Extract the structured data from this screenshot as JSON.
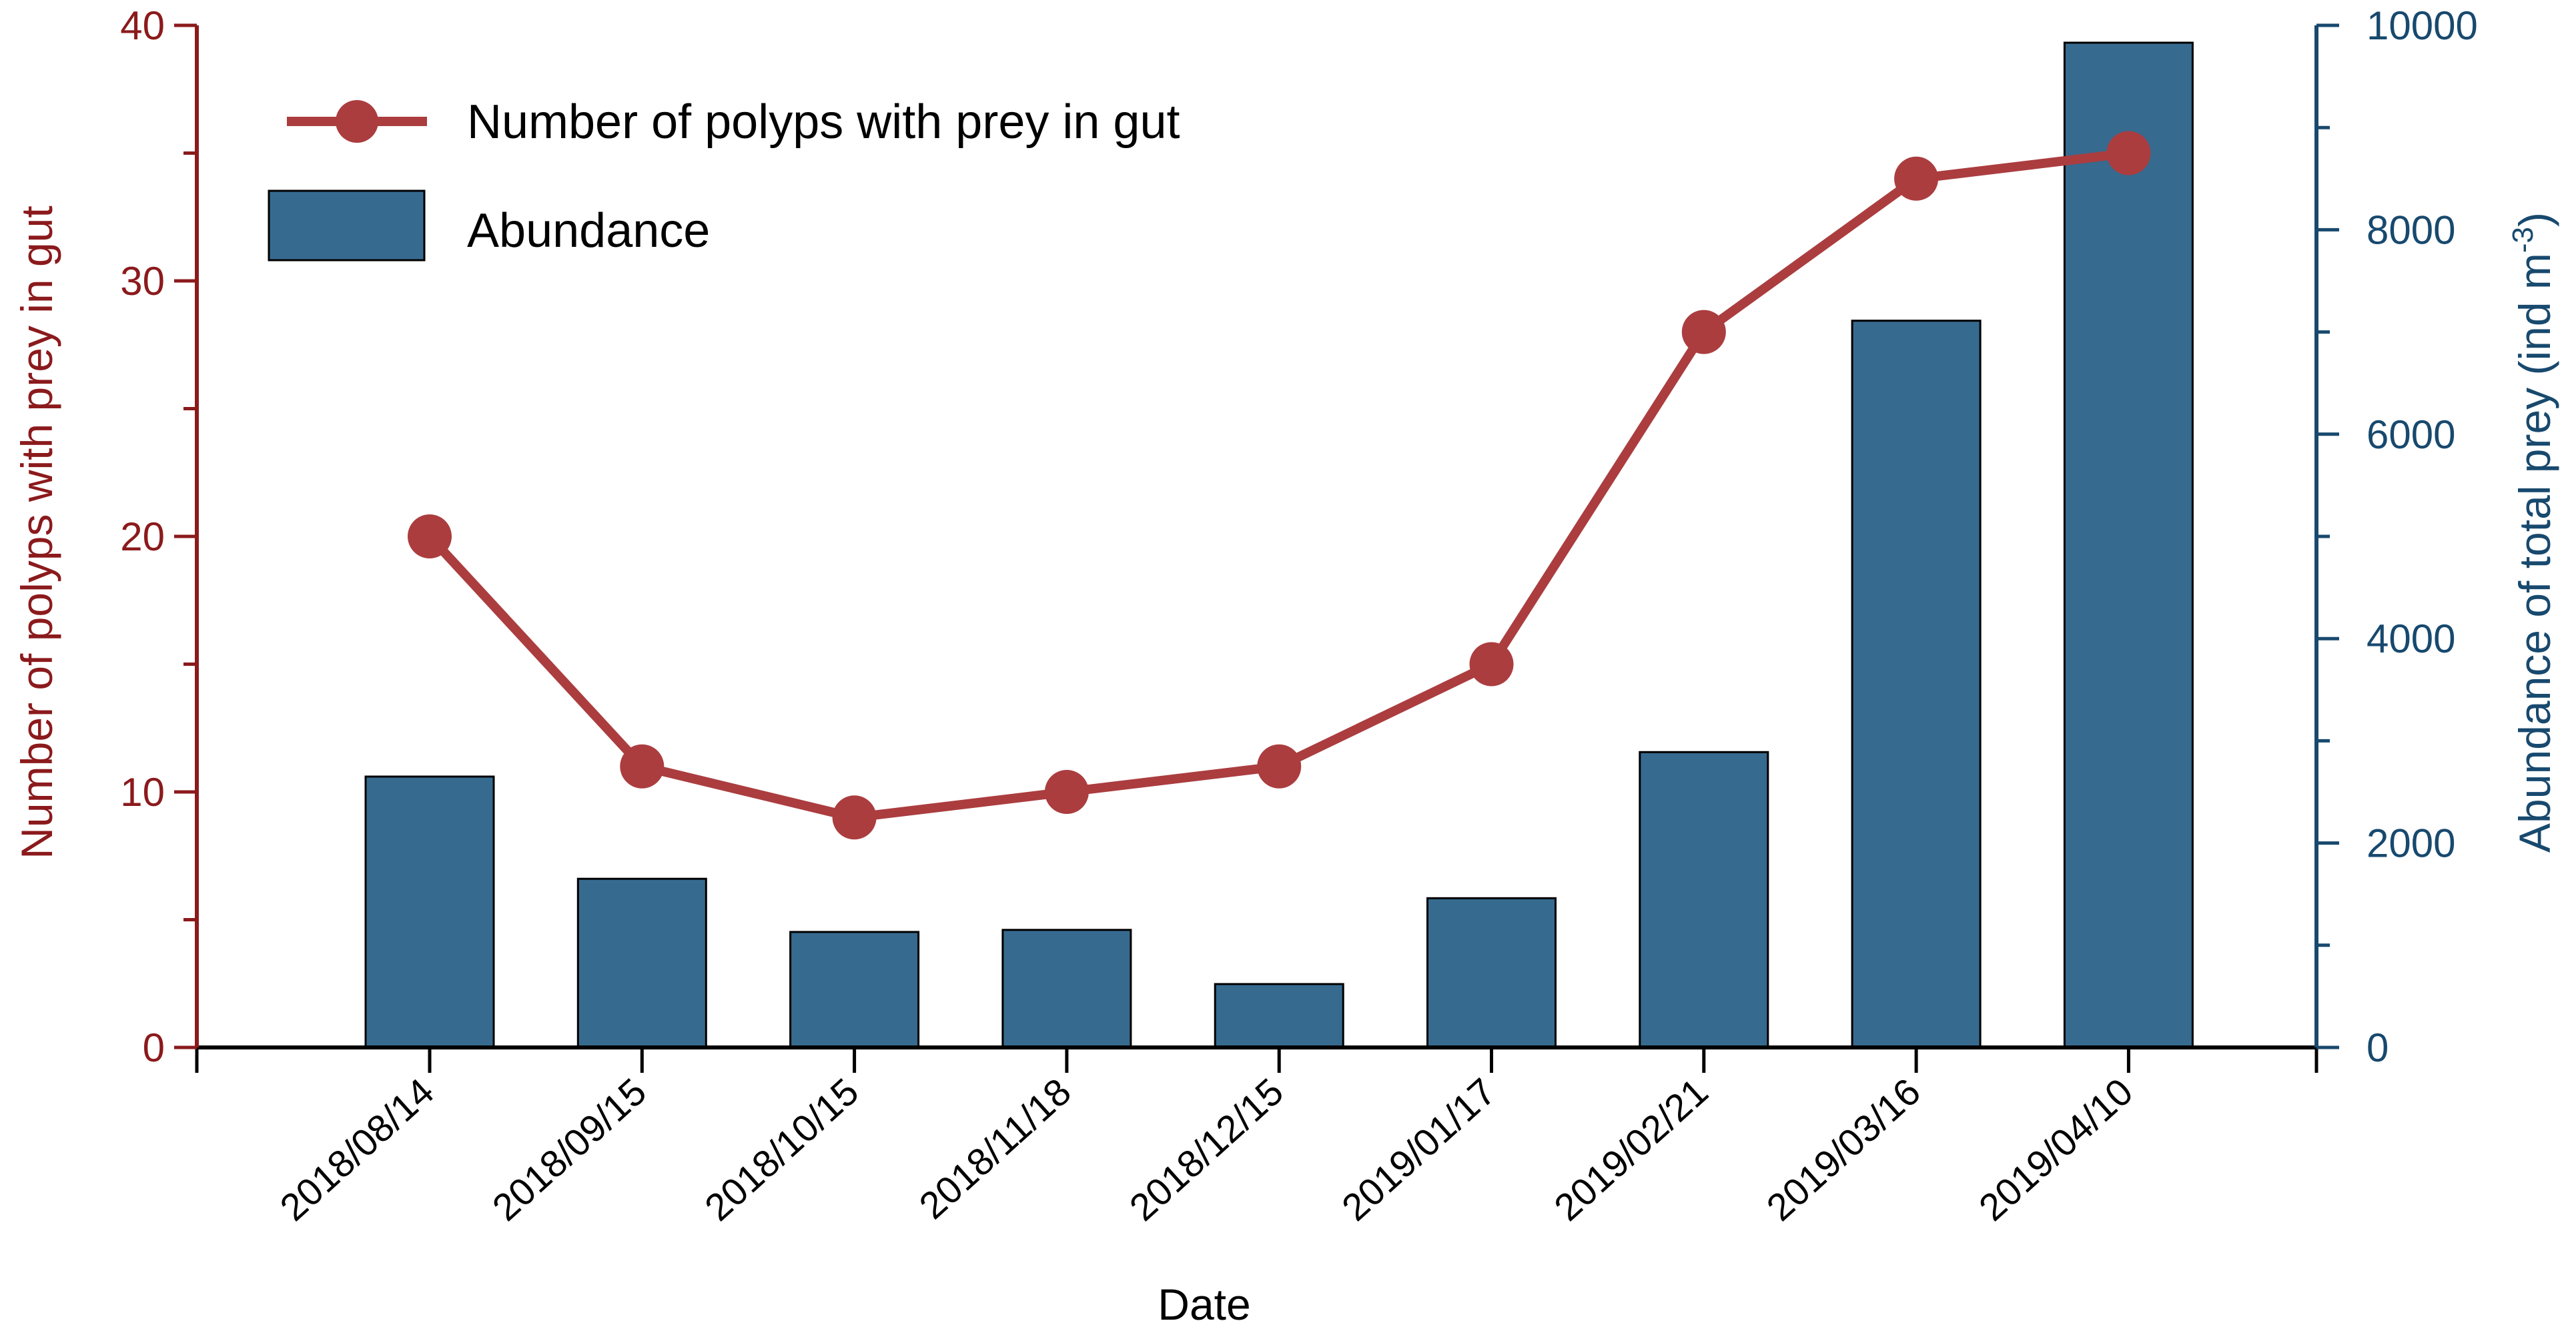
{
  "chart_data": {
    "type": "bar",
    "categories": [
      "2018/08/14",
      "2018/09/15",
      "2018/10/15",
      "2018/11/18",
      "2018/12/15",
      "2019/01/17",
      "2019/02/21",
      "2019/03/16",
      "2019/04/10"
    ],
    "series": [
      {
        "name": "Abundance",
        "type": "bar",
        "axis": "right",
        "values": [
          2650,
          1650,
          1130,
          1150,
          620,
          1460,
          2890,
          7110,
          9830
        ]
      },
      {
        "name": "Number of polyps with prey in gut",
        "type": "line",
        "axis": "left",
        "values": [
          20,
          11,
          9,
          10,
          11,
          15,
          28,
          34,
          35
        ]
      }
    ],
    "xlabel": "Date",
    "ylabel_left": "Number of polyps with prey in gut",
    "ylabel_right_main": "Abundance of total prey (ind m",
    "ylabel_right_sup": "-3",
    "ylabel_right_close": ")",
    "ylim_left": [
      0,
      40
    ],
    "ylim_right": [
      0,
      10000
    ],
    "yticks_left": [
      "0",
      "10",
      "20",
      "30",
      "40"
    ],
    "yticks_right": [
      "0",
      "2000",
      "4000",
      "6000",
      "8000",
      "10000"
    ],
    "legend_position": "top-left",
    "grid": false,
    "colors": {
      "bar": "#376a8f",
      "line": "#ab3d3f",
      "left_axis": "#8b1a1c",
      "right_axis": "#18496e"
    }
  }
}
